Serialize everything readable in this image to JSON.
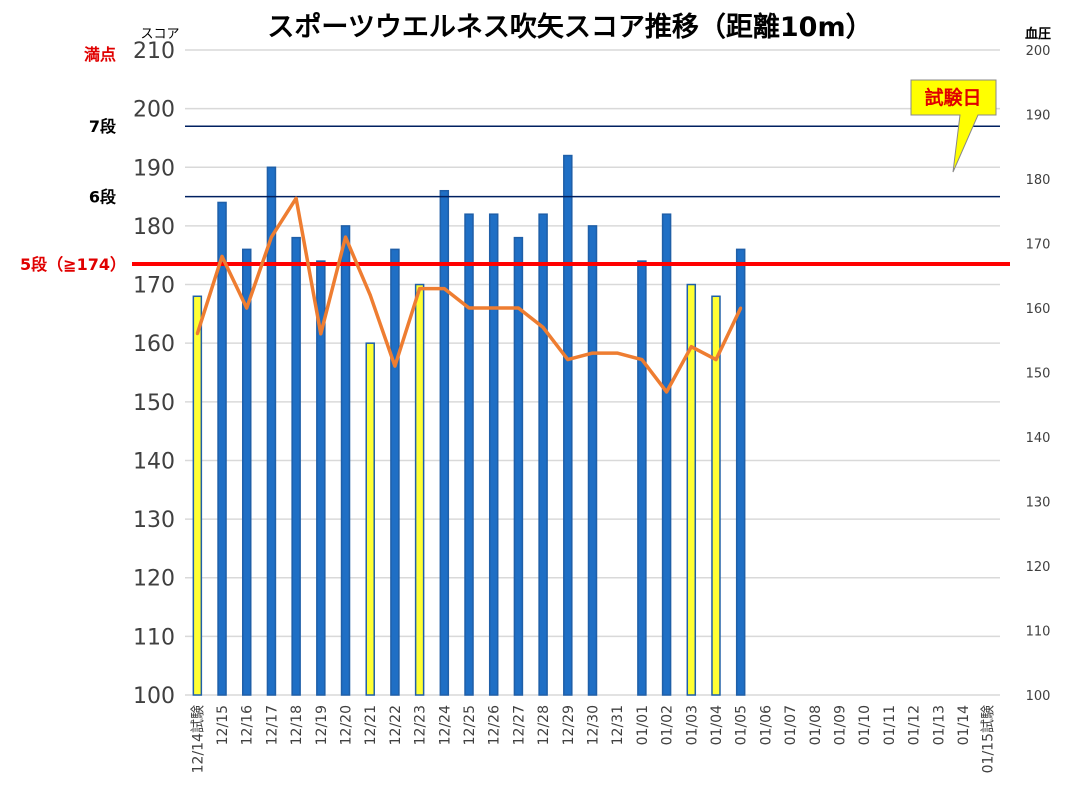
{
  "chart_data": {
    "type": "bar",
    "title": "スポーツウエルネス吹矢スコア推移（距離10m）",
    "left_axis_label": "スコア",
    "right_axis_label": "血圧",
    "categories": [
      "12/14試験",
      "12/15",
      "12/16",
      "12/17",
      "12/18",
      "12/19",
      "12/20",
      "12/21",
      "12/22",
      "12/23",
      "12/24",
      "12/25",
      "12/26",
      "12/27",
      "12/28",
      "12/29",
      "12/30",
      "12/31",
      "01/01",
      "01/02",
      "01/03",
      "01/04",
      "01/05",
      "01/06",
      "01/07",
      "01/08",
      "01/09",
      "01/10",
      "01/11",
      "01/12",
      "01/13",
      "01/14",
      "01/15試験"
    ],
    "y_left": {
      "min": 100,
      "max": 210,
      "ticks": [
        100,
        110,
        120,
        130,
        140,
        150,
        160,
        170,
        180,
        190,
        200,
        210
      ]
    },
    "y_right": {
      "min": 100,
      "max": 200,
      "ticks": [
        100,
        110,
        120,
        130,
        140,
        150,
        160,
        170,
        180,
        190,
        200
      ]
    },
    "grid": true,
    "series": [
      {
        "name": "スコア",
        "kind": "bar",
        "axis": "left",
        "values": [
          168,
          184,
          176,
          190,
          178,
          174,
          180,
          160,
          176,
          170,
          186,
          182,
          182,
          178,
          182,
          192,
          180,
          null,
          174,
          182,
          170,
          168,
          176,
          null,
          null,
          null,
          null,
          null,
          null,
          null,
          null,
          null,
          null
        ],
        "colors": [
          "#ffff33",
          "#1f6fc5",
          "#1f6fc5",
          "#1f6fc5",
          "#1f6fc5",
          "#1f6fc5",
          "#1f6fc5",
          "#ffff33",
          "#1f6fc5",
          "#ffff33",
          "#1f6fc5",
          "#1f6fc5",
          "#1f6fc5",
          "#1f6fc5",
          "#1f6fc5",
          "#1f6fc5",
          "#1f6fc5",
          null,
          "#1f6fc5",
          "#1f6fc5",
          "#ffff33",
          "#ffff33",
          "#1f6fc5",
          null,
          null,
          null,
          null,
          null,
          null,
          null,
          null,
          null,
          null
        ]
      },
      {
        "name": "血圧",
        "kind": "line",
        "axis": "right",
        "color": "#ee7d31",
        "values": [
          156,
          168,
          160,
          171,
          177,
          156,
          171,
          162,
          151,
          163,
          163,
          160,
          160,
          160,
          157,
          152,
          153,
          153,
          152,
          147,
          154,
          152,
          160,
          null,
          null,
          null,
          null,
          null,
          null,
          null,
          null,
          null,
          null
        ]
      }
    ],
    "reference_lines": [
      {
        "label": "満点",
        "value": 210,
        "color": "#e00000",
        "line_color": "#d9d9d9",
        "width": 1.5
      },
      {
        "label": "7段",
        "value": 197,
        "color": "#000000",
        "line_color": "#002060",
        "width": 1.5
      },
      {
        "label": "6段",
        "value": 185,
        "color": "#000000",
        "line_color": "#002060",
        "width": 1.5
      },
      {
        "label": "5段（≧174）",
        "value": 173.5,
        "color": "#e00000",
        "line_color": "#ff0000",
        "width": 4
      }
    ],
    "callout": {
      "text": "試験日",
      "fill": "#ffff00",
      "text_color": "#e00000"
    },
    "colors": {
      "bar_blue": "#1f6fc5",
      "bar_yellow": "#ffff33",
      "line_orange": "#ee7d31",
      "grid": "#d9d9d9"
    }
  }
}
